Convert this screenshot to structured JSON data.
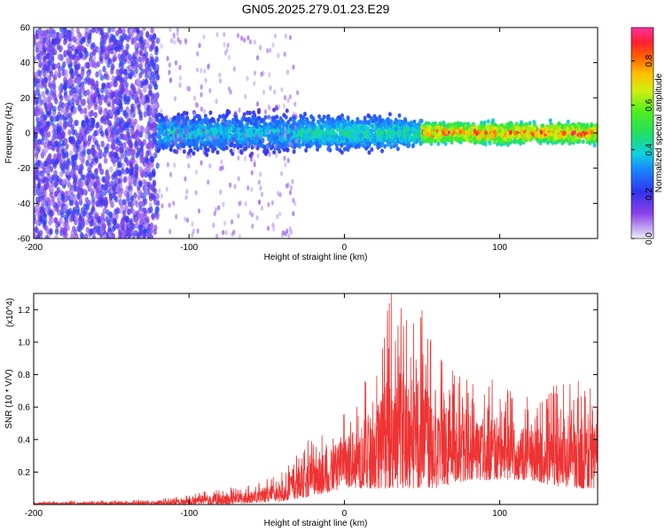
{
  "title": "GN05.2025.279.01.23.E29",
  "chart_data": [
    {
      "type": "heatmap",
      "name": "spectrogram",
      "xlabel": "Height of straight line (km)",
      "ylabel": "Frequency (Hz)",
      "xlim": [
        -200,
        163
      ],
      "ylim": [
        -60,
        60
      ],
      "x_ticks": [
        "-200",
        "-100",
        "0",
        "100"
      ],
      "y_ticks": [
        "-60",
        "-40",
        "-20",
        "0",
        "20",
        "40",
        "60"
      ],
      "colorbar": {
        "label": "Normalized spectral amplitude",
        "range": [
          0,
          0.95
        ],
        "ticks": [
          "0.0",
          "0.2",
          "0.4",
          "0.6",
          "0.8"
        ]
      },
      "bands": [
        {
          "x_range": [
            -200,
            -120
          ],
          "freq_range": [
            -60,
            60
          ],
          "description": "scattered low-amplitude noise",
          "amplitude": [
            0.05,
            0.25
          ]
        },
        {
          "x_range": [
            -120,
            -30
          ],
          "freq_range": [
            -15,
            15
          ],
          "amplitude": [
            0.15,
            0.45
          ]
        },
        {
          "x_range": [
            -30,
            50
          ],
          "freq_range": [
            -12,
            12
          ],
          "amplitude": [
            0.2,
            0.5
          ]
        },
        {
          "x_range": [
            50,
            163
          ],
          "freq_range": [
            -8,
            8
          ],
          "amplitude": [
            0.3,
            0.95
          ],
          "peak_freq": 0
        }
      ]
    },
    {
      "type": "line",
      "name": "snr",
      "xlabel": "Height of straight line (km)",
      "ylabel": "SNR (10 * V/V)",
      "y_multiplier": "(x10^4)",
      "xlim": [
        -200,
        163
      ],
      "ylim": [
        0,
        1.3
      ],
      "x_ticks": [
        "-200",
        "-100",
        "0",
        "100"
      ],
      "y_ticks": [
        "0.2",
        "0.4",
        "0.6",
        "0.8",
        "1.0",
        "1.2"
      ],
      "color": "#ee3333",
      "envelope": [
        {
          "x": -200,
          "low": 0.0,
          "high": 0.02
        },
        {
          "x": -120,
          "low": 0.0,
          "high": 0.03
        },
        {
          "x": -100,
          "low": 0.0,
          "high": 0.06
        },
        {
          "x": -80,
          "low": 0.0,
          "high": 0.1
        },
        {
          "x": -60,
          "low": 0.01,
          "high": 0.12
        },
        {
          "x": -40,
          "low": 0.02,
          "high": 0.2
        },
        {
          "x": -20,
          "low": 0.05,
          "high": 0.45
        },
        {
          "x": 0,
          "low": 0.1,
          "high": 0.6
        },
        {
          "x": 20,
          "low": 0.1,
          "high": 0.9
        },
        {
          "x": 30,
          "low": 0.1,
          "high": 1.3
        },
        {
          "x": 40,
          "low": 0.1,
          "high": 1.28
        },
        {
          "x": 50,
          "low": 0.1,
          "high": 1.2
        },
        {
          "x": 60,
          "low": 0.1,
          "high": 0.95
        },
        {
          "x": 80,
          "low": 0.15,
          "high": 0.85
        },
        {
          "x": 100,
          "low": 0.15,
          "high": 0.75
        },
        {
          "x": 120,
          "low": 0.15,
          "high": 0.7
        },
        {
          "x": 140,
          "low": 0.1,
          "high": 0.75
        },
        {
          "x": 163,
          "low": 0.1,
          "high": 0.78
        }
      ]
    }
  ]
}
